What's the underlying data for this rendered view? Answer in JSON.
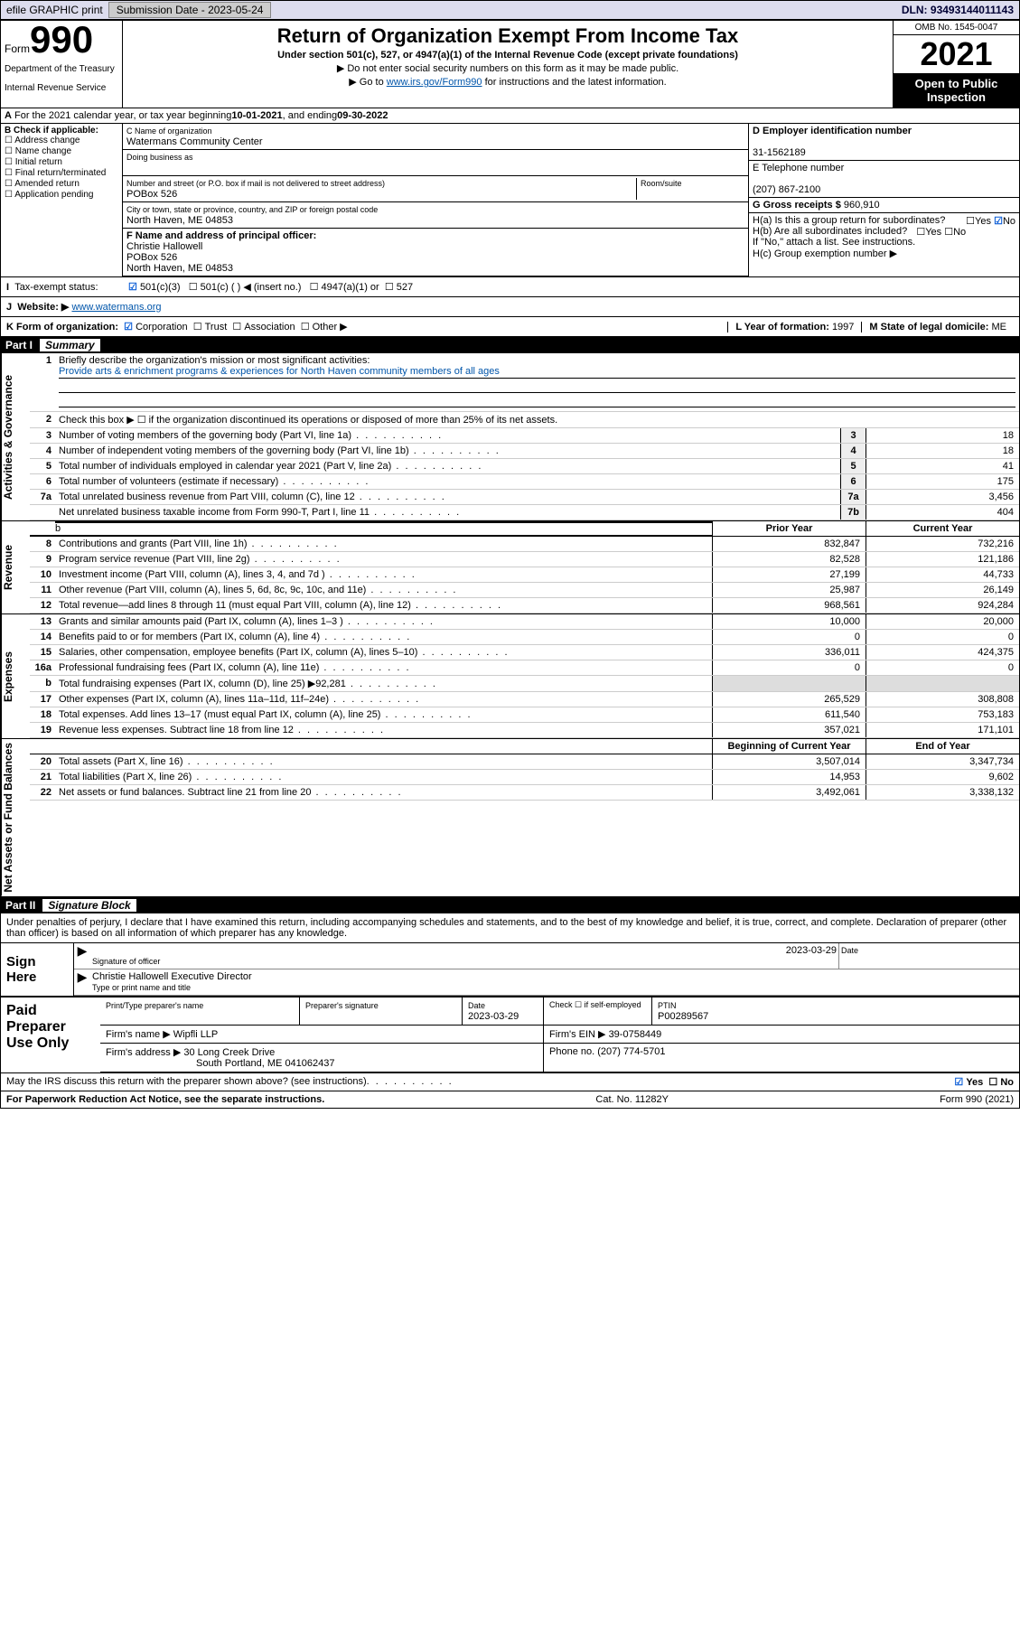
{
  "topbar": {
    "efile": "efile GRAPHIC print",
    "subdate_lbl": "Submission Date - ",
    "subdate": "2023-05-24",
    "dln_lbl": "DLN: ",
    "dln": "93493144011143"
  },
  "header": {
    "form_word": "Form",
    "form_num": "990",
    "dept": "Department of the Treasury",
    "irs": "Internal Revenue Service",
    "title": "Return of Organization Exempt From Income Tax",
    "sub": "Under section 501(c), 527, or 4947(a)(1) of the Internal Revenue Code (except private foundations)",
    "instr1": "▶ Do not enter social security numbers on this form as it may be made public.",
    "instr2_pre": "▶ Go to ",
    "instr2_link": "www.irs.gov/Form990",
    "instr2_post": " for instructions and the latest information.",
    "omb": "OMB No. 1545-0047",
    "year": "2021",
    "open": "Open to Public Inspection"
  },
  "A": {
    "text_pre": "For the 2021 calendar year, or tax year beginning ",
    "begin": "10-01-2021",
    "mid": " , and ending ",
    "end": "09-30-2022"
  },
  "B": {
    "lbl": "B Check if applicable:",
    "opts": [
      "Address change",
      "Name change",
      "Initial return",
      "Final return/terminated",
      "Amended return",
      "Application pending"
    ]
  },
  "C": {
    "name_lbl": "C Name of organization",
    "name": "Watermans Community Center",
    "dba": "Doing business as",
    "street_lbl": "Number and street (or P.O. box if mail is not delivered to street address)",
    "room_lbl": "Room/suite",
    "street": "POBox 526",
    "city_lbl": "City or town, state or province, country, and ZIP or foreign postal code",
    "city": "North Haven, ME  04853"
  },
  "D": {
    "lbl": "D Employer identification number",
    "val": "31-1562189"
  },
  "E": {
    "lbl": "E Telephone number",
    "val": "(207) 867-2100"
  },
  "G": {
    "lbl": "G Gross receipts $ ",
    "val": "960,910"
  },
  "F": {
    "lbl": "F Name and address of principal officer:",
    "name": "Christie Hallowell",
    "street": "POBox 526",
    "city": "North Haven, ME  04853"
  },
  "H": {
    "a": "H(a)  Is this a group return for subordinates?",
    "b": "H(b)  Are all subordinates included?",
    "b2": "If \"No,\" attach a list. See instructions.",
    "c": "H(c)  Group exemption number ▶",
    "yes": "Yes",
    "no": "No"
  },
  "I": {
    "lbl": "Tax-exempt status:",
    "o1": "501(c)(3)",
    "o2": "501(c) (  ) ◀ (insert no.)",
    "o3": "4947(a)(1) or",
    "o4": "527"
  },
  "J": {
    "lbl": "Website: ▶",
    "val": "www.watermans.org"
  },
  "K": {
    "lbl": "K Form of organization:",
    "o1": "Corporation",
    "o2": "Trust",
    "o3": "Association",
    "o4": "Other ▶"
  },
  "L": {
    "lbl": "L Year of formation: ",
    "val": "1997"
  },
  "M": {
    "lbl": "M State of legal domicile: ",
    "val": "ME"
  },
  "part1": {
    "num": "Part I",
    "title": "Summary"
  },
  "s1": {
    "q1": "Briefly describe the organization's mission or most significant activities:",
    "q1a": "Provide arts & enrichment programs & experiences for North Haven community members of all ages",
    "q2": "Check this box ▶ ☐  if the organization discontinued its operations or disposed of more than 25% of its net assets.",
    "rows": [
      {
        "n": "3",
        "t": "Number of voting members of the governing body (Part VI, line 1a)",
        "nb": "3",
        "v": "18"
      },
      {
        "n": "4",
        "t": "Number of independent voting members of the governing body (Part VI, line 1b)",
        "nb": "4",
        "v": "18"
      },
      {
        "n": "5",
        "t": "Total number of individuals employed in calendar year 2021 (Part V, line 2a)",
        "nb": "5",
        "v": "41"
      },
      {
        "n": "6",
        "t": "Total number of volunteers (estimate if necessary)",
        "nb": "6",
        "v": "175"
      },
      {
        "n": "7a",
        "t": "Total unrelated business revenue from Part VIII, column (C), line 12",
        "nb": "7a",
        "v": "3,456"
      },
      {
        "n": "",
        "t": "Net unrelated business taxable income from Form 990-T, Part I, line 11",
        "nb": "7b",
        "v": "404"
      }
    ]
  },
  "cols": {
    "prior": "Prior Year",
    "current": "Current Year",
    "begin": "Beginning of Current Year",
    "end": "End of Year"
  },
  "rev": [
    {
      "n": "8",
      "t": "Contributions and grants (Part VIII, line 1h)",
      "p": "832,847",
      "c": "732,216"
    },
    {
      "n": "9",
      "t": "Program service revenue (Part VIII, line 2g)",
      "p": "82,528",
      "c": "121,186"
    },
    {
      "n": "10",
      "t": "Investment income (Part VIII, column (A), lines 3, 4, and 7d )",
      "p": "27,199",
      "c": "44,733"
    },
    {
      "n": "11",
      "t": "Other revenue (Part VIII, column (A), lines 5, 6d, 8c, 9c, 10c, and 11e)",
      "p": "25,987",
      "c": "26,149"
    },
    {
      "n": "12",
      "t": "Total revenue—add lines 8 through 11 (must equal Part VIII, column (A), line 12)",
      "p": "968,561",
      "c": "924,284"
    }
  ],
  "exp": [
    {
      "n": "13",
      "t": "Grants and similar amounts paid (Part IX, column (A), lines 1–3 )",
      "p": "10,000",
      "c": "20,000"
    },
    {
      "n": "14",
      "t": "Benefits paid to or for members (Part IX, column (A), line 4)",
      "p": "0",
      "c": "0"
    },
    {
      "n": "15",
      "t": "Salaries, other compensation, employee benefits (Part IX, column (A), lines 5–10)",
      "p": "336,011",
      "c": "424,375"
    },
    {
      "n": "16a",
      "t": "Professional fundraising fees (Part IX, column (A), line 11e)",
      "p": "0",
      "c": "0"
    },
    {
      "n": "b",
      "t": "Total fundraising expenses (Part IX, column (D), line 25) ▶92,281",
      "p": "",
      "c": "",
      "shade": true
    },
    {
      "n": "17",
      "t": "Other expenses (Part IX, column (A), lines 11a–11d, 11f–24e)",
      "p": "265,529",
      "c": "308,808"
    },
    {
      "n": "18",
      "t": "Total expenses. Add lines 13–17 (must equal Part IX, column (A), line 25)",
      "p": "611,540",
      "c": "753,183"
    },
    {
      "n": "19",
      "t": "Revenue less expenses. Subtract line 18 from line 12",
      "p": "357,021",
      "c": "171,101"
    }
  ],
  "net": [
    {
      "n": "20",
      "t": "Total assets (Part X, line 16)",
      "p": "3,507,014",
      "c": "3,347,734"
    },
    {
      "n": "21",
      "t": "Total liabilities (Part X, line 26)",
      "p": "14,953",
      "c": "9,602"
    },
    {
      "n": "22",
      "t": "Net assets or fund balances. Subtract line 21 from line 20",
      "p": "3,492,061",
      "c": "3,338,132"
    }
  ],
  "vtabs": {
    "ag": "Activities & Governance",
    "rev": "Revenue",
    "exp": "Expenses",
    "net": "Net Assets or Fund Balances"
  },
  "part2": {
    "num": "Part II",
    "title": "Signature Block"
  },
  "penalty": "Under penalties of perjury, I declare that I have examined this return, including accompanying schedules and statements, and to the best of my knowledge and belief, it is true, correct, and complete. Declaration of preparer (other than officer) is based on all information of which preparer has any knowledge.",
  "sign": {
    "lbl": "Sign Here",
    "sig_lbl": "Signature of officer",
    "date_lbl": "Date",
    "date": "2023-03-29",
    "name": "Christie Hallowell Executive Director",
    "name_lbl": "Type or print name and title"
  },
  "paid": {
    "lbl": "Paid Preparer Use Only",
    "h1": "Print/Type preparer's name",
    "h2": "Preparer's signature",
    "h3": "Date",
    "h3v": "2023-03-29",
    "h4": "Check ☐ if self-employed",
    "h5": "PTIN",
    "h5v": "P00289567",
    "firm_lbl": "Firm's name   ▶",
    "firm": "Wipfli LLP",
    "ein_lbl": "Firm's EIN ▶",
    "ein": "39-0758449",
    "addr_lbl": "Firm's address ▶",
    "addr1": "30 Long Creek Drive",
    "addr2": "South Portland, ME  041062437",
    "phone_lbl": "Phone no. ",
    "phone": "(207) 774-5701"
  },
  "may": {
    "q": "May the IRS discuss this return with the preparer shown above? (see instructions)",
    "yes": "Yes",
    "no": "No"
  },
  "footer": {
    "l": "For Paperwork Reduction Act Notice, see the separate instructions.",
    "c": "Cat. No. 11282Y",
    "r": "Form 990 (2021)"
  }
}
